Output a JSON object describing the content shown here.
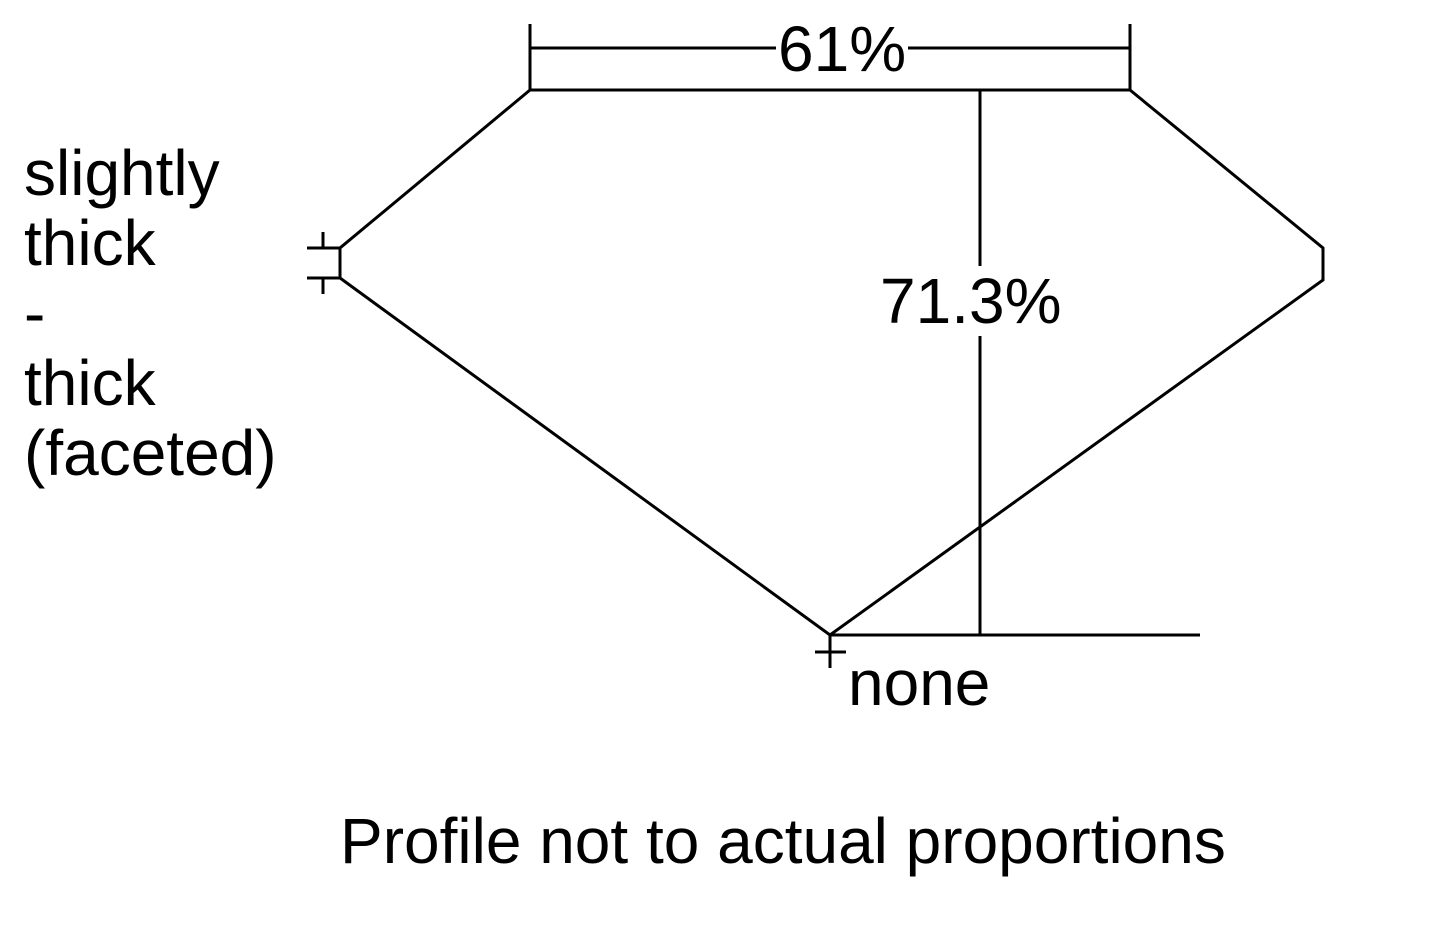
{
  "girdle_label": [
    "slightly",
    "thick",
    "-",
    "thick",
    "(faceted)"
  ],
  "table_percent": "61%",
  "depth_percent": "71.3%",
  "culet_label": "none",
  "note": "Profile not to actual proportions",
  "line_color": "#000000"
}
